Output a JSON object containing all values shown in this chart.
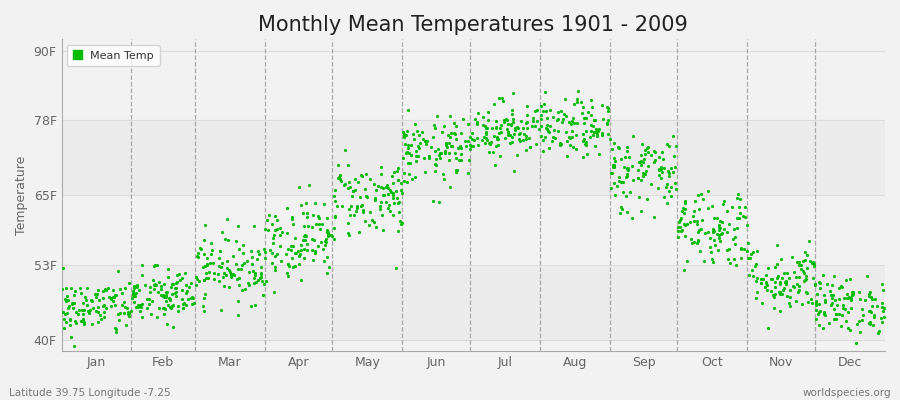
{
  "title": "Monthly Mean Temperatures 1901 - 2009",
  "ylabel": "Temperature",
  "xlabel_labels": [
    "Jan",
    "Feb",
    "Mar",
    "Apr",
    "May",
    "Jun",
    "Jul",
    "Aug",
    "Sep",
    "Oct",
    "Nov",
    "Dec"
  ],
  "ytick_labels": [
    "40F",
    "53F",
    "65F",
    "78F",
    "90F"
  ],
  "ytick_values": [
    40,
    53,
    65,
    78,
    90
  ],
  "ylim": [
    38,
    92
  ],
  "dot_color": "#00bb00",
  "dot_size": 5,
  "background_color": "#f2f2f2",
  "legend_label": "Mean Temp",
  "footer_left": "Latitude 39.75 Longitude -7.25",
  "footer_right": "worldspecies.org",
  "title_fontsize": 15,
  "axis_label_fontsize": 9,
  "tick_fontsize": 9,
  "n_years": 109,
  "seed": 42,
  "monthly_means_f": [
    45.5,
    47.5,
    52.5,
    57.5,
    64.5,
    72.5,
    76.5,
    76.5,
    69.0,
    59.5,
    50.5,
    46.0
  ],
  "monthly_stds_f": [
    2.5,
    2.5,
    3.0,
    3.5,
    3.5,
    3.0,
    2.5,
    2.5,
    3.5,
    3.5,
    3.0,
    2.5
  ],
  "month_days": [
    31,
    28,
    31,
    30,
    31,
    30,
    31,
    31,
    30,
    31,
    30,
    31
  ],
  "vline_color": "#999999",
  "grid_color": "#dddddd",
  "spine_color": "#aaaaaa",
  "tick_color": "#666666"
}
